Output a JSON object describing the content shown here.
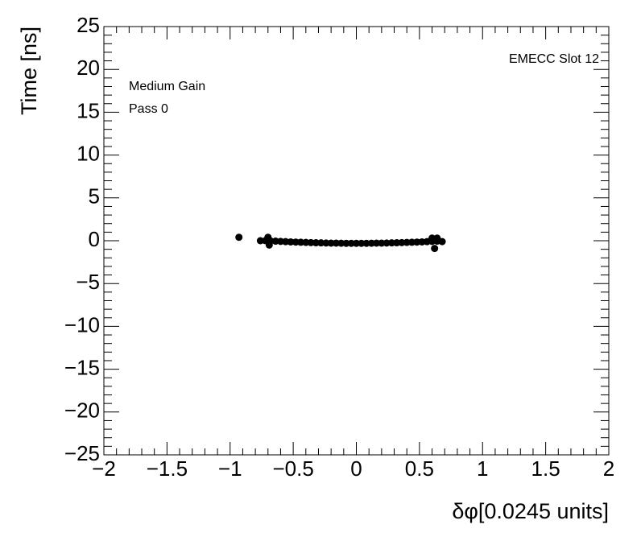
{
  "chart_data": {
    "type": "scatter",
    "xlabel": "δφ[0.0245 units]",
    "ylabel": "Time [ns]",
    "annotations": [
      "EMECC Slot 12",
      "Medium Gain",
      "Pass 0"
    ],
    "color": "#000000",
    "xlim": [
      -2,
      2
    ],
    "ylim": [
      -25,
      25
    ],
    "xticks": [
      {
        "value": -2,
        "label": "−2"
      },
      {
        "value": -1.5,
        "label": "−1.5"
      },
      {
        "value": -1,
        "label": "−1"
      },
      {
        "value": -0.5,
        "label": "−0.5"
      },
      0,
      0.5,
      1,
      1.5,
      2
    ],
    "yticks": [
      {
        "value": -25,
        "label": "−25"
      },
      {
        "value": -20,
        "label": "−20"
      },
      {
        "value": -15,
        "label": "−15"
      },
      {
        "value": -10,
        "label": "−10"
      },
      {
        "value": -5,
        "label": "−5"
      },
      0,
      5,
      10,
      15,
      20,
      25
    ],
    "x": [
      -0.93,
      -0.76,
      -0.7,
      -0.69,
      -0.72,
      -0.68,
      -0.64,
      -0.6,
      -0.56,
      -0.52,
      -0.48,
      -0.44,
      -0.4,
      -0.36,
      -0.32,
      -0.28,
      -0.24,
      -0.2,
      -0.16,
      -0.12,
      -0.08,
      -0.04,
      0,
      0.04,
      0.08,
      0.12,
      0.16,
      0.2,
      0.24,
      0.28,
      0.32,
      0.36,
      0.4,
      0.44,
      0.48,
      0.52,
      0.56,
      0.6,
      0.64,
      0.62,
      0.6,
      0.64,
      0.68
    ],
    "values": [
      0.4,
      0.0,
      0.4,
      -0.5,
      0.01,
      -0.02,
      -0.05,
      -0.08,
      -0.11,
      -0.14,
      -0.16,
      -0.18,
      -0.2,
      -0.22,
      -0.24,
      -0.25,
      -0.27,
      -0.28,
      -0.28,
      -0.29,
      -0.3,
      -0.3,
      -0.3,
      -0.3,
      -0.3,
      -0.29,
      -0.28,
      -0.28,
      -0.27,
      -0.25,
      -0.24,
      -0.22,
      -0.2,
      -0.18,
      -0.16,
      -0.14,
      -0.11,
      -0.08,
      -0.05,
      -0.9,
      0.3,
      0.3,
      -0.1
    ]
  }
}
